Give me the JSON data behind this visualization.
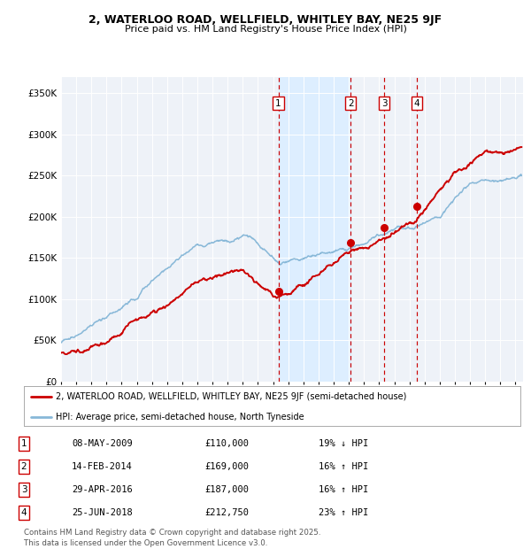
{
  "title1": "2, WATERLOO ROAD, WELLFIELD, WHITLEY BAY, NE25 9JF",
  "title2": "Price paid vs. HM Land Registry's House Price Index (HPI)",
  "ylabel_ticks": [
    "£0",
    "£50K",
    "£100K",
    "£150K",
    "£200K",
    "£250K",
    "£300K",
    "£350K"
  ],
  "ytick_vals": [
    0,
    50000,
    100000,
    150000,
    200000,
    250000,
    300000,
    350000
  ],
  "ylim": [
    0,
    370000
  ],
  "sale_dates_num": [
    2009.35,
    2014.12,
    2016.33,
    2018.49
  ],
  "sale_prices": [
    110000,
    169000,
    187000,
    212750
  ],
  "sale_labels": [
    "1",
    "2",
    "3",
    "4"
  ],
  "vline_color": "#cc0000",
  "hpi_color": "#88b8d8",
  "price_color": "#cc0000",
  "shade_color": "#ddeeff",
  "legend_label_price": "2, WATERLOO ROAD, WELLFIELD, WHITLEY BAY, NE25 9JF (semi-detached house)",
  "legend_label_hpi": "HPI: Average price, semi-detached house, North Tyneside",
  "table_rows": [
    [
      "1",
      "08-MAY-2009",
      "£110,000",
      "19% ↓ HPI"
    ],
    [
      "2",
      "14-FEB-2014",
      "£169,000",
      "16% ↑ HPI"
    ],
    [
      "3",
      "29-APR-2016",
      "£187,000",
      "16% ↑ HPI"
    ],
    [
      "4",
      "25-JUN-2018",
      "£212,750",
      "23% ↑ HPI"
    ]
  ],
  "footnote": "Contains HM Land Registry data © Crown copyright and database right 2025.\nThis data is licensed under the Open Government Licence v3.0.",
  "xlim_start": 1995.0,
  "xlim_end": 2025.5,
  "background_color": "#eef2f8"
}
